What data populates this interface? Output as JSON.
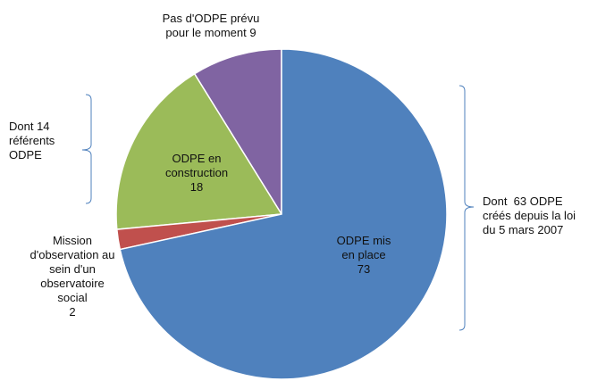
{
  "chart_data": {
    "type": "pie",
    "categories": [
      "ODPE mis en place",
      "Mission d'observation au sein d'un observatoire social",
      "ODPE en construction",
      "Pas d'ODPE prévu pour le moment"
    ],
    "values": [
      73,
      2,
      18,
      9
    ],
    "colors": [
      "#4f81bd",
      "#c0504d",
      "#9bbb59",
      "#8064a2"
    ],
    "annotations": [
      "Dont 14 référents ODPE",
      "Dont  63 ODPE créés depuis la loi du 5 mars 2007"
    ]
  }
}
